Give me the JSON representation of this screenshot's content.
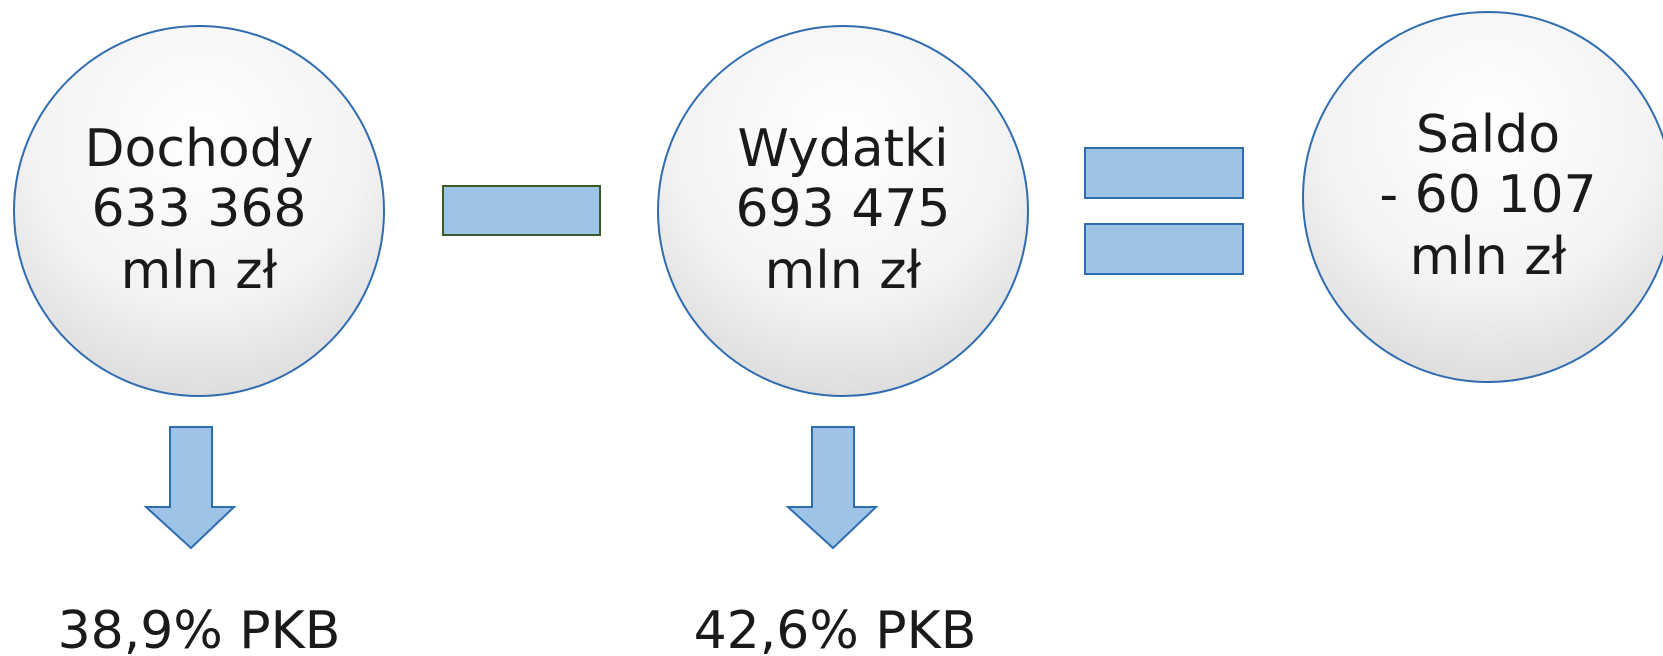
{
  "nodes": [
    {
      "label": "Dochody",
      "value": "633 368",
      "unit": "mln zł"
    },
    {
      "label": "Wydatki",
      "value": "693 475",
      "unit": "mln zł"
    },
    {
      "label": "Saldo",
      "value": "- 60 107",
      "unit": "mln zł"
    }
  ],
  "notes": [
    "38,9% PKB",
    "42,6% PKB"
  ]
}
